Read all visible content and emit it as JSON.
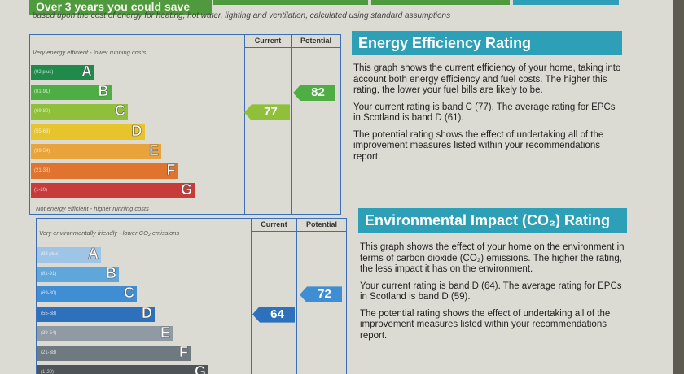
{
  "banner": {
    "text": "Over 3 years you could save"
  },
  "subline": "based upon the cost of energy for heating, hot water, lighting and ventilation, calculated using standard assumptions",
  "colors": {
    "paper": "#dcdbd3",
    "frame": "#3b6fb5",
    "title_bg": "#2da0b8",
    "energy_bands": [
      "#1f8a4a",
      "#4fae43",
      "#8fbf3b",
      "#e7c32c",
      "#e8a33a",
      "#e0742f",
      "#c83b3b"
    ],
    "env_bands": [
      "#9fc5e6",
      "#5fa6da",
      "#3f8ed3",
      "#2d70bb",
      "#8f9aa2",
      "#6f7a80",
      "#4e5458"
    ]
  },
  "energy_chart": {
    "col_current": "Current",
    "col_potential": "Potential",
    "top_note": "Very energy efficient - lower running costs",
    "bottom_note": "Not energy efficient - higher running costs",
    "bands": [
      {
        "letter": "A",
        "range": "(92 plus)"
      },
      {
        "letter": "B",
        "range": "(81-91)"
      },
      {
        "letter": "C",
        "range": "(69-80)"
      },
      {
        "letter": "D",
        "range": "(55-68)"
      },
      {
        "letter": "E",
        "range": "(39-54)"
      },
      {
        "letter": "F",
        "range": "(21-38)"
      },
      {
        "letter": "G",
        "range": "(1-20)"
      }
    ],
    "current": {
      "value": "77",
      "band": "C"
    },
    "potential": {
      "value": "82",
      "band": "B"
    }
  },
  "energy_panel": {
    "title": "Energy Efficiency Rating",
    "p1": "This graph shows the current efficiency of your home, taking into account both energy efficiency and fuel costs. The higher this rating, the lower your fuel bills are likely to be.",
    "p2": "Your current rating is band C (77). The average rating for EPCs in Scotland is band D (61).",
    "p3": "The potential rating shows the effect of undertaking all of the improvement measures listed within your recommendations report."
  },
  "env_chart": {
    "col_current": "Current",
    "col_potential": "Potential",
    "top_note": "Very environmentally friendly - lower CO₂ emissions",
    "bands": [
      {
        "letter": "A",
        "range": "(92 plus)"
      },
      {
        "letter": "B",
        "range": "(81-91)"
      },
      {
        "letter": "C",
        "range": "(69-80)"
      },
      {
        "letter": "D",
        "range": "(55-68)"
      },
      {
        "letter": "E",
        "range": "(39-54)"
      },
      {
        "letter": "F",
        "range": "(21-38)"
      },
      {
        "letter": "G",
        "range": "(1-20)"
      }
    ],
    "current": {
      "value": "64",
      "band": "D"
    },
    "potential": {
      "value": "72",
      "band": "C"
    }
  },
  "env_panel": {
    "title": "Environmental Impact (CO₂) Rating",
    "p1": "This graph shows the effect of your home on the environment in terms of carbon dioxide (CO₂) emissions. The higher the rating, the less impact it has on the environment.",
    "p2": "Your current rating is band D (64). The average rating for EPCs in Scotland is band D (59).",
    "p3": "The potential rating shows the effect of undertaking all of the improvement measures listed within your recommendations report."
  }
}
